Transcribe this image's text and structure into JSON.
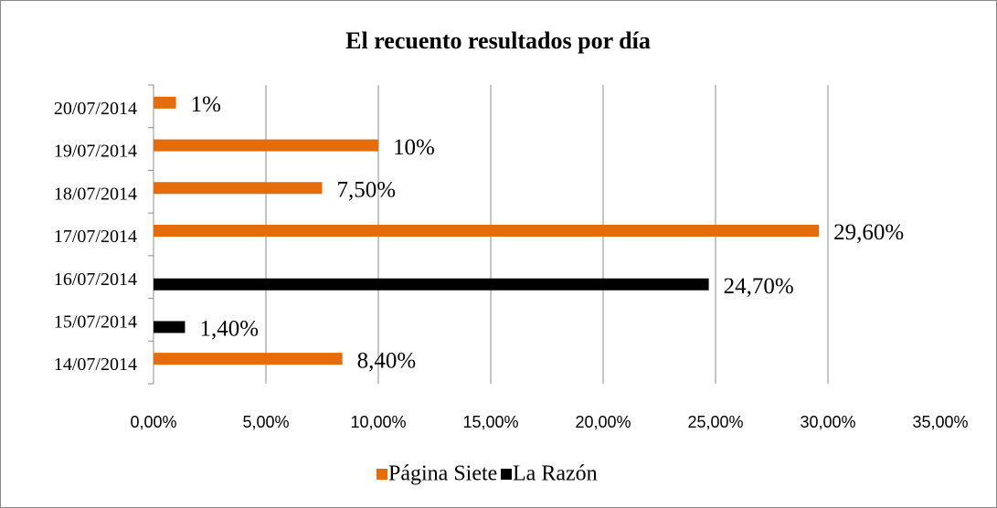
{
  "chart_data": {
    "type": "bar",
    "orientation": "horizontal",
    "title": "El recuento resultados por día",
    "categories": [
      "14/07/2014",
      "15/07/2014",
      "16/07/2014",
      "17/07/2014",
      "18/07/2014",
      "19/07/2014",
      "20/07/2014"
    ],
    "series": [
      {
        "name": "Página Siete",
        "color": "#e46c0a",
        "values": [
          8.4,
          null,
          null,
          29.6,
          7.5,
          10,
          1
        ],
        "value_labels": [
          "8,40%",
          null,
          null,
          "29,60%",
          "7,50%",
          "10%",
          "1%"
        ]
      },
      {
        "name": "La Razón",
        "color": "#000000",
        "values": [
          null,
          1.4,
          24.7,
          null,
          null,
          null,
          null
        ],
        "value_labels": [
          null,
          "1,40%",
          "24,70%",
          null,
          null,
          null,
          null
        ]
      }
    ],
    "xlim": [
      0,
      35
    ],
    "xticks": [
      {
        "value": 0,
        "label": "0,00%"
      },
      {
        "value": 5,
        "label": "5,00%"
      },
      {
        "value": 10,
        "label": "10,00%"
      },
      {
        "value": 15,
        "label": "15,00%"
      },
      {
        "value": 20,
        "label": "20,00%"
      },
      {
        "value": 25,
        "label": "25,00%"
      },
      {
        "value": 30,
        "label": "30,00%"
      },
      {
        "value": 35,
        "label": "35,00%"
      }
    ],
    "grid": true,
    "legend": "bottom"
  }
}
